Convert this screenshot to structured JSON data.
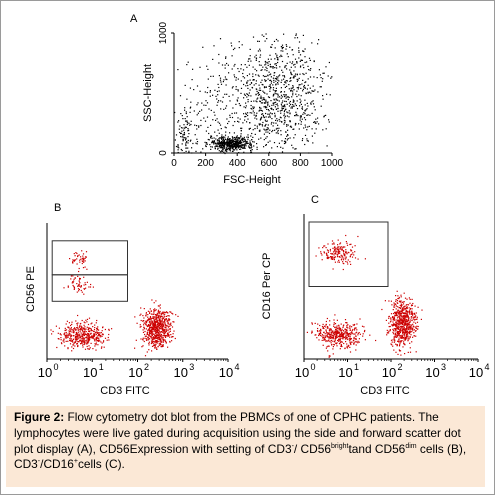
{
  "chart_data": [
    {
      "type": "scatter",
      "panel_label": "A",
      "xlabel": "FSC-Height",
      "ylabel": "SSC-Height",
      "xlim": [
        0,
        1000
      ],
      "ylim": [
        0,
        1000
      ],
      "xticks": [
        "0",
        "200",
        "400",
        "600",
        "800",
        "1000"
      ],
      "yticks": [
        "0",
        "1000"
      ],
      "point_color": "#000000",
      "populations": [
        {
          "center": [
            360,
            80
          ],
          "spread": [
            70,
            30
          ],
          "count": 480
        },
        {
          "center": [
            640,
            480
          ],
          "spread": [
            150,
            260
          ],
          "count": 950
        },
        {
          "center": [
            250,
            420
          ],
          "spread": [
            120,
            220
          ],
          "count": 140
        },
        {
          "center": [
            75,
            150
          ],
          "spread": [
            35,
            110
          ],
          "count": 90
        }
      ]
    },
    {
      "type": "scatter",
      "panel_label": "B",
      "xlabel": "CD3 FITC",
      "ylabel": "CD56 PE",
      "xscale": "log",
      "xlim": [
        1,
        10000
      ],
      "ylim": [
        1,
        10000
      ],
      "xticks": [
        "10",
        "10",
        "10",
        "10",
        "10"
      ],
      "xtick_exponents": [
        "0",
        "1",
        "2",
        "3",
        "4"
      ],
      "point_color": "#cc0000",
      "populations": [
        {
          "center": [
            6,
            5
          ],
          "spread": [
            0.25,
            0.18
          ],
          "count": 420
        },
        {
          "center": [
            250,
            8
          ],
          "spread": [
            0.16,
            0.3
          ],
          "count": 620
        },
        {
          "center": [
            5,
            900
          ],
          "spread": [
            0.12,
            0.12
          ],
          "count": 45
        },
        {
          "center": [
            5,
            150
          ],
          "spread": [
            0.13,
            0.12
          ],
          "count": 55
        }
      ],
      "gates": [
        {
          "x": [
            1.3,
            60
          ],
          "y": [
            300,
            3000
          ]
        },
        {
          "x": [
            1.3,
            60
          ],
          "y": [
            50,
            300
          ]
        }
      ]
    },
    {
      "type": "scatter",
      "panel_label": "C",
      "xlabel": "CD3 FITC",
      "ylabel": "CD16 Per CP",
      "xscale": "log",
      "xlim": [
        1,
        10000
      ],
      "ylim": [
        1,
        10000
      ],
      "xticks": [
        "10",
        "10",
        "10",
        "10",
        "10"
      ],
      "xtick_exponents": [
        "0",
        "1",
        "2",
        "3",
        "4"
      ],
      "point_color": "#cc0000",
      "populations": [
        {
          "center": [
            6,
            5
          ],
          "spread": [
            0.25,
            0.18
          ],
          "count": 420
        },
        {
          "center": [
            180,
            10
          ],
          "spread": [
            0.15,
            0.32
          ],
          "count": 650
        },
        {
          "center": [
            6,
            900
          ],
          "spread": [
            0.2,
            0.15
          ],
          "count": 170
        }
      ],
      "gates": [
        {
          "x": [
            1.3,
            85
          ],
          "y": [
            100,
            6000
          ]
        }
      ]
    }
  ],
  "caption": {
    "label": "Figure 2:",
    "text_1": " Flow cytometry dot blot from the PBMCs of one of CPHC patients. The lymphocytes were live gated during acquisition using the side and forward scatter dot plot display (A), CD56Expression with setting of CD3",
    "sup_1": "-",
    "text_2": "/ CD56",
    "sup_2": "bright",
    "text_3": "tand CD56",
    "sup_3": "dim",
    "text_4": " cells (B), CD3",
    "sup_4": "-",
    "text_5": "/CD16",
    "sup_5": "+",
    "text_6": "cells (C)."
  }
}
